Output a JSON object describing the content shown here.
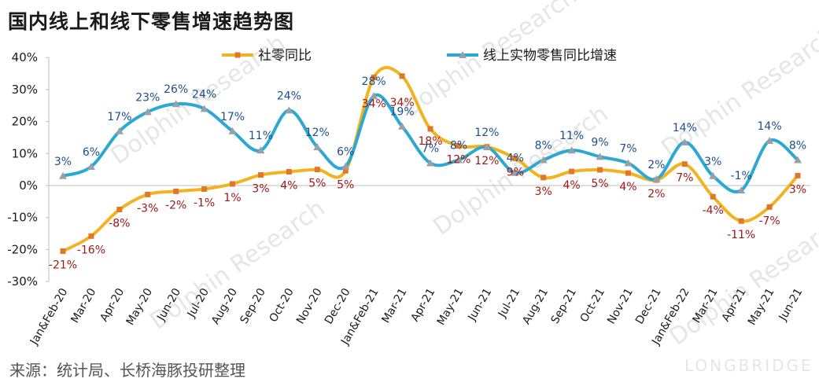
{
  "title": "国内线上和线下零售增速趋势图",
  "source": "来源：统计局、长桥海豚投研整理",
  "watermark": {
    "brand": "Dolphin Research",
    "logo": "LONGBRIDGE"
  },
  "colors": {
    "retail": "#f2b320",
    "retail_marker": "#e0782a",
    "online": "#2ca9d2",
    "online_marker": "#9aa0a6",
    "retail_label": "#a01818",
    "online_label": "#1f4e8c"
  },
  "chart_data": {
    "type": "line",
    "categories": [
      "Jan&Feb-20",
      "Mar-20",
      "Apr-20",
      "May-20",
      "Jun-20",
      "Jul-20",
      "Aug-20",
      "Sep-20",
      "Oct-20",
      "Nov-20",
      "Dec-20",
      "Jan&Feb-21",
      "Mar-21",
      "Apr-21",
      "May-21",
      "Jun-21",
      "Jul-21",
      "Aug-21",
      "Sep-21",
      "Oct-21",
      "Nov-21",
      "Dec-21",
      "Jan&Feb-22",
      "Mar-21",
      "Apr-21",
      "May-21",
      "Jun-21"
    ],
    "yticks": [
      "40%",
      "30%",
      "20%",
      "10%",
      "0%",
      "-10%",
      "-20%",
      "-30%"
    ],
    "ylim": [
      -30,
      40
    ],
    "legend_position": "top",
    "grid": false,
    "series": [
      {
        "name": "社零同比",
        "key": "retail",
        "values": [
          -20.5,
          -15.8,
          -7.5,
          -2.8,
          -1.8,
          -1.1,
          0.5,
          3.3,
          4.3,
          5.0,
          4.6,
          33.8,
          34.2,
          17.7,
          12.4,
          12.1,
          8.5,
          2.5,
          4.4,
          4.9,
          3.9,
          1.7,
          6.7,
          -3.5,
          -11.1,
          -6.7,
          3.1
        ],
        "labels": [
          "-21%",
          "-16%",
          "-8%",
          "-3%",
          "-2%",
          "-1%",
          "1%",
          "3%",
          "4%",
          "5%",
          "5%",
          "34%",
          "34%",
          "18%",
          "12%",
          "12%",
          "9%",
          "3%",
          "4%",
          "5%",
          "4%",
          "2%",
          "7%",
          "-4%",
          "-11%",
          "-7%",
          "3%"
        ]
      },
      {
        "name": "线上实物零售同比增速",
        "key": "online",
        "values": [
          3.0,
          5.9,
          17.0,
          23.0,
          25.5,
          24.0,
          17.0,
          11.0,
          23.5,
          12.0,
          6.0,
          28.0,
          18.5,
          7.0,
          8.0,
          12.0,
          4.0,
          8.0,
          11.0,
          9.0,
          7.0,
          2.0,
          13.5,
          3.0,
          -1.5,
          14.0,
          8.0
        ],
        "labels": [
          "3%",
          "6%",
          "17%",
          "23%",
          "26%",
          "24%",
          "17%",
          "11%",
          "24%",
          "12%",
          "6%",
          "28%",
          "19%",
          "7%",
          "8%",
          "12%",
          "4%",
          "8%",
          "11%",
          "9%",
          "7%",
          "2%",
          "14%",
          "3%",
          "-1%",
          "14%",
          "8%"
        ]
      }
    ]
  }
}
